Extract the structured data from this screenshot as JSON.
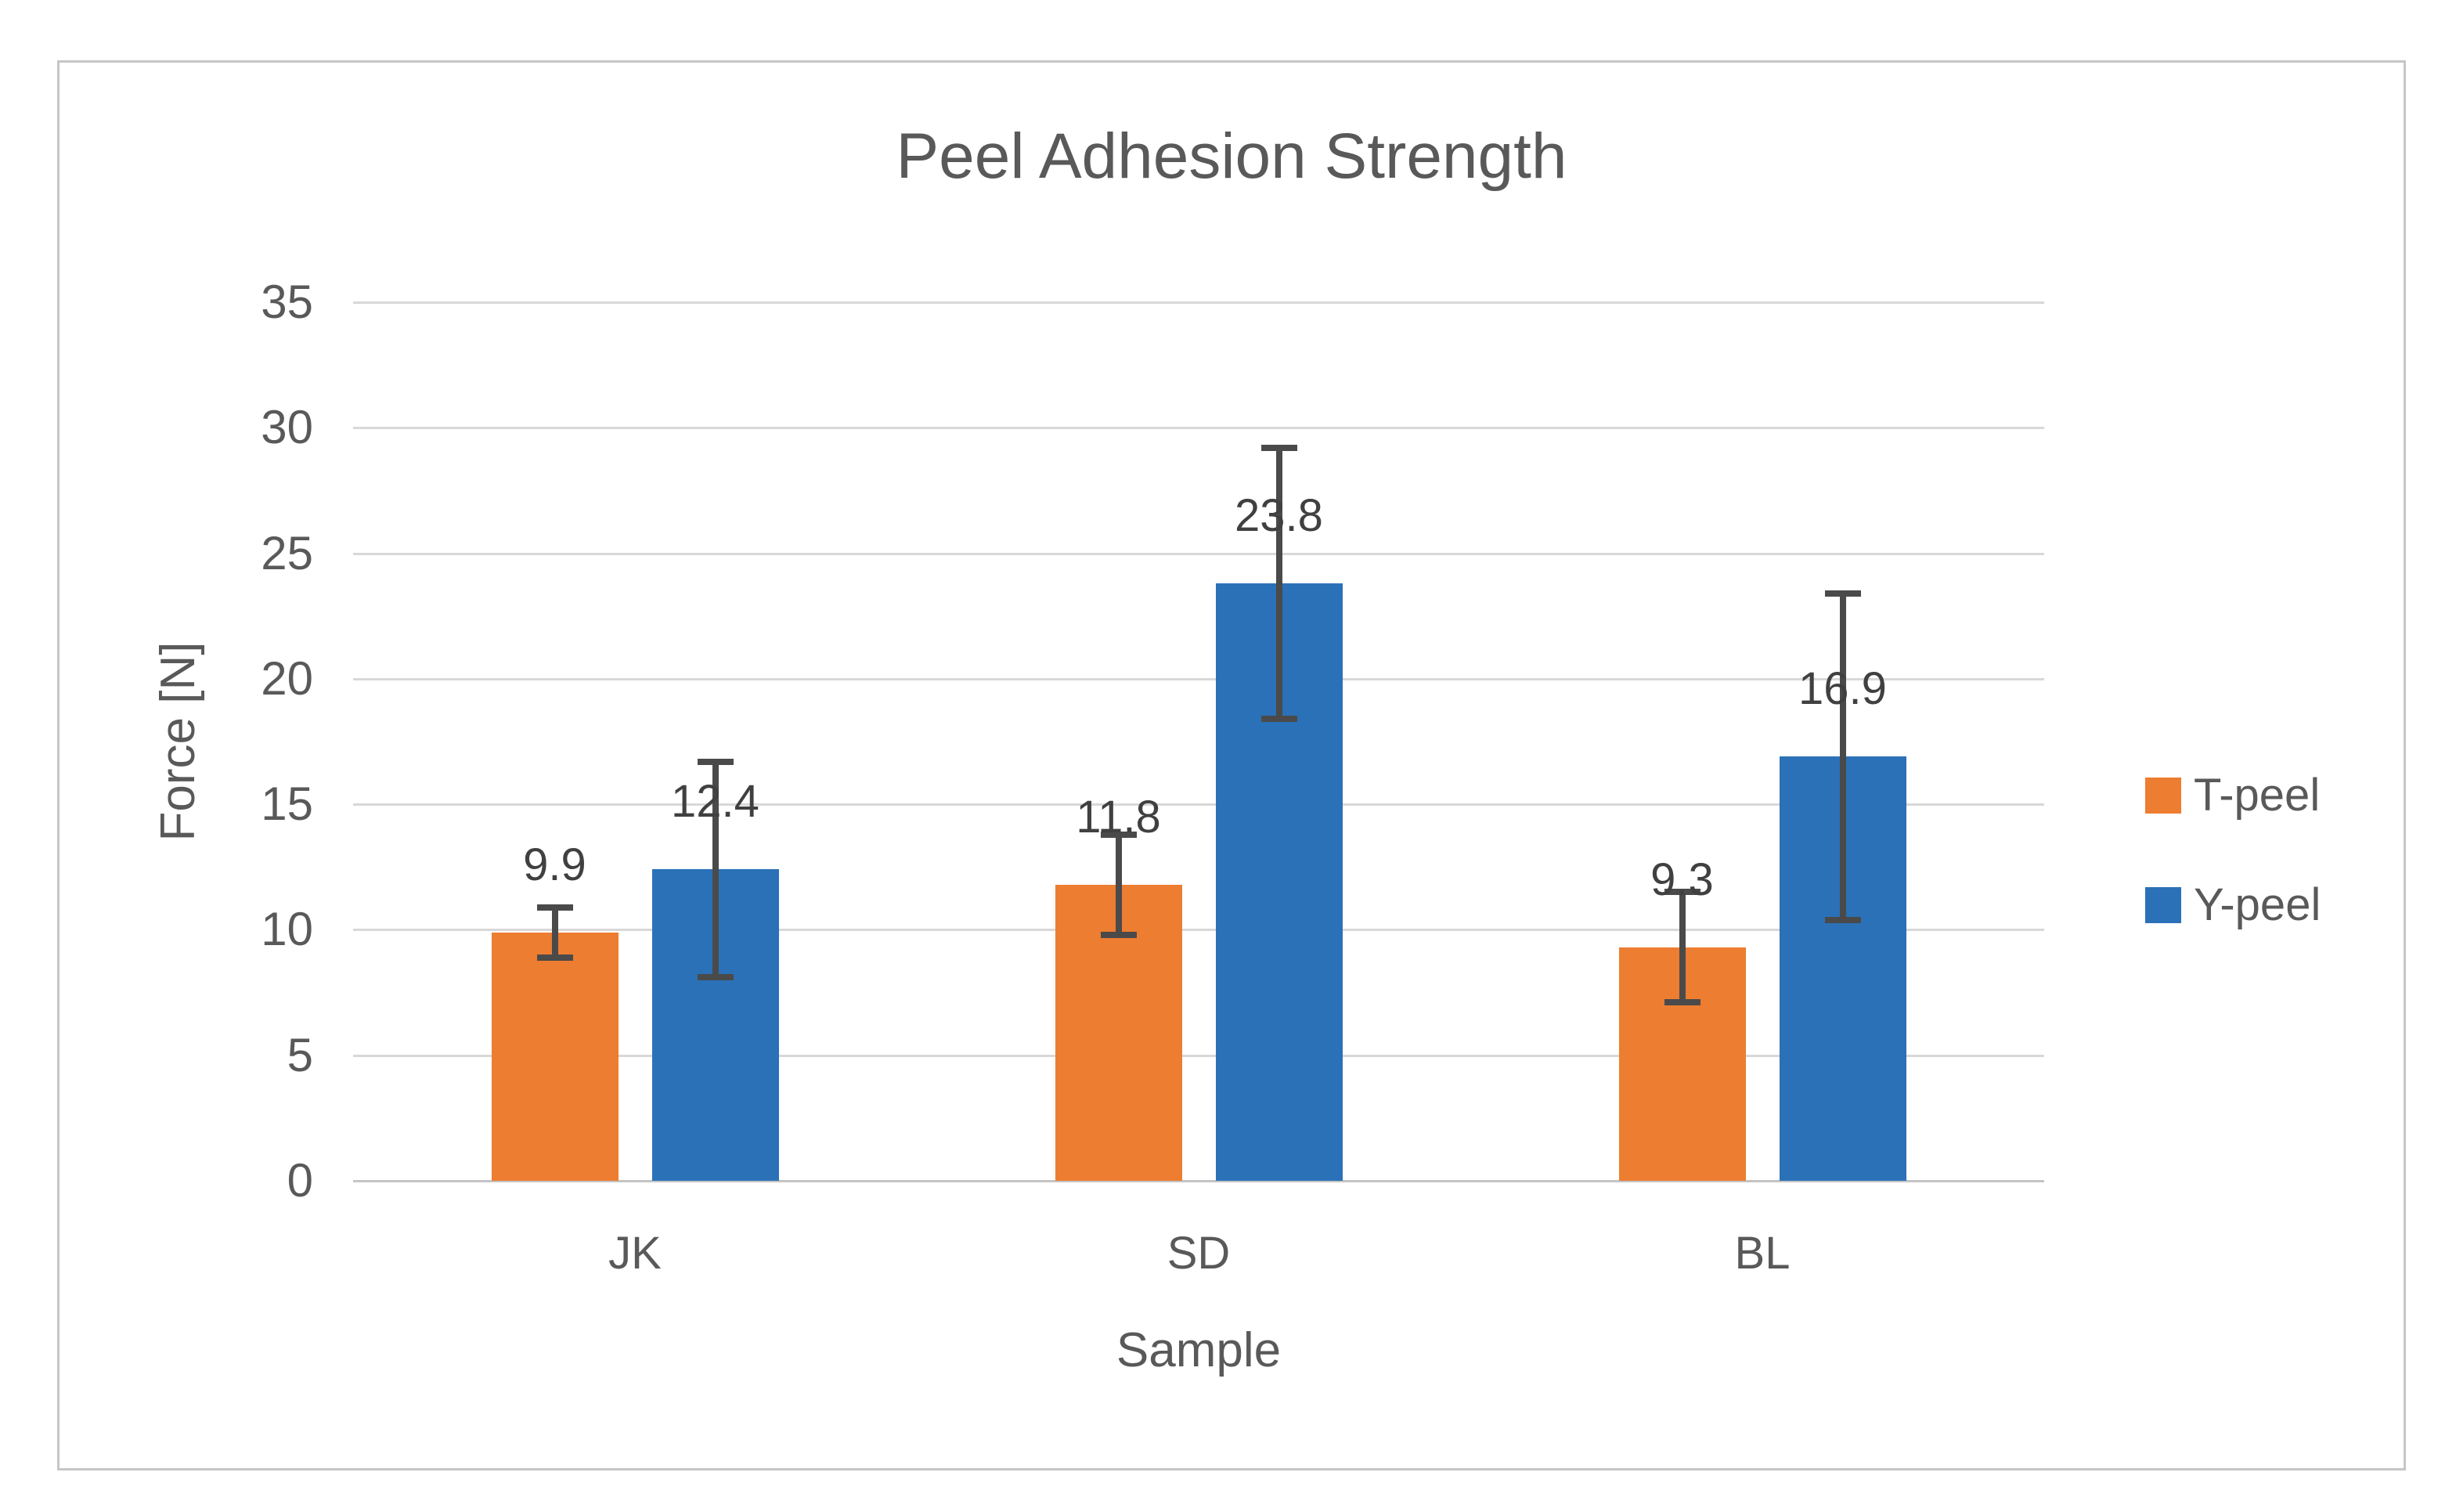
{
  "chart_data": {
    "type": "bar",
    "title": "Peel Adhesion Strength",
    "xlabel": "Sample",
    "ylabel": "Force [N]",
    "categories": [
      "JK",
      "SD",
      "BL"
    ],
    "series": [
      {
        "name": "T-peel",
        "color": "#ED7D31",
        "values": [
          9.9,
          11.8,
          9.3
        ],
        "errors": [
          1.0,
          2.0,
          2.2
        ],
        "value_labels": [
          "9.9",
          "11.8",
          "9.3"
        ]
      },
      {
        "name": "Y-peel",
        "color": "#2B71B8",
        "values": [
          12.4,
          23.8,
          16.9
        ],
        "errors": [
          4.3,
          5.4,
          6.5
        ],
        "value_labels": [
          "12.4",
          "23.8",
          "16.9"
        ]
      }
    ],
    "ylim": [
      0,
      35
    ],
    "ytick_step": 5,
    "ytick_labels": [
      "0",
      "5",
      "10",
      "15",
      "20",
      "25",
      "30",
      "35"
    ],
    "grid": true,
    "error_bars": true,
    "legend_position": "right",
    "error_bar_color": "#4A4A4A"
  }
}
